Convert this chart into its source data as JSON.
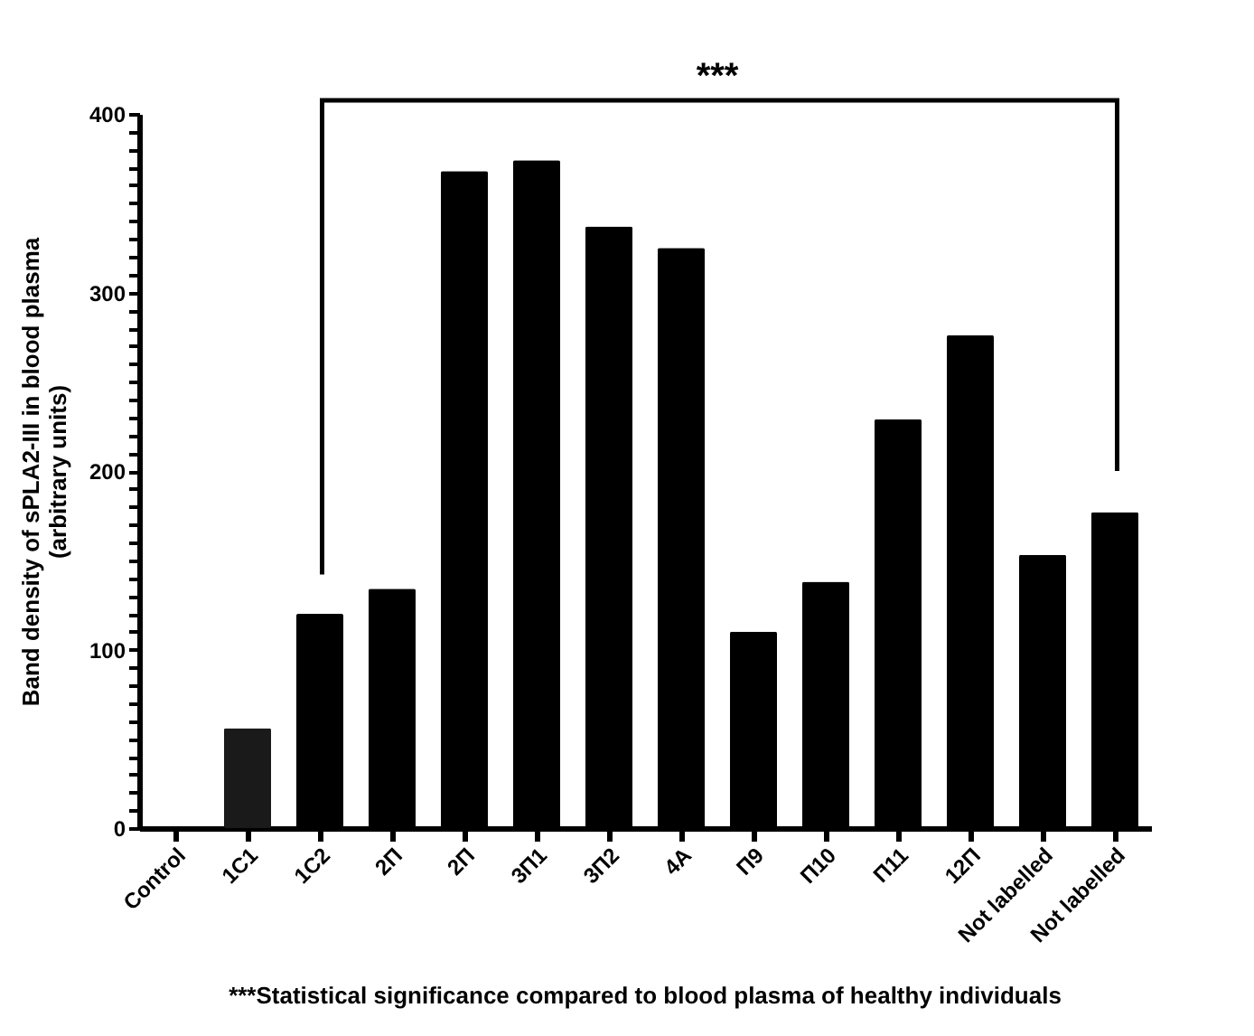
{
  "chart_data": {
    "type": "bar",
    "categories": [
      "Control",
      "1C1",
      "1C2",
      "2П",
      "2П",
      "3П1",
      "3П2",
      "4A",
      "П9",
      "П10",
      "П11",
      "12П",
      "Not labelled",
      "Not labelled"
    ],
    "values": [
      0,
      56,
      120,
      134,
      368,
      374,
      337,
      325,
      110,
      138,
      229,
      276,
      153,
      177
    ],
    "colors": [
      "#000000",
      "#1a1a1a",
      "#000000",
      "#000000",
      "#000000",
      "#000000",
      "#000000",
      "#000000",
      "#000000",
      "#000000",
      "#000000",
      "#000000",
      "#000000",
      "#000000"
    ],
    "ylabel": "Band density of sPLA2-III in blood plasma\n(arbitrary units)",
    "ylim": [
      0,
      400
    ],
    "yticks": [
      0,
      {
        "value": 10,
        "label": null
      },
      {
        "value": 20,
        "label": null
      },
      {
        "value": 30,
        "label": null
      },
      {
        "value": 40,
        "label": null
      },
      {
        "value": 50,
        "label": null
      },
      {
        "value": 60,
        "label": null
      },
      {
        "value": 70,
        "label": null
      },
      {
        "value": 80,
        "label": null
      },
      {
        "value": 90,
        "label": null
      },
      100,
      {
        "value": 110,
        "label": null
      },
      {
        "value": 120,
        "label": null
      },
      {
        "value": 130,
        "label": null
      },
      {
        "value": 140,
        "label": null
      },
      {
        "value": 150,
        "label": null
      },
      {
        "value": 160,
        "label": null
      },
      {
        "value": 170,
        "label": null
      },
      {
        "value": 180,
        "label": null
      },
      {
        "value": 190,
        "label": null
      },
      200,
      {
        "value": 210,
        "label": null
      },
      {
        "value": 220,
        "label": null
      },
      {
        "value": 230,
        "label": null
      },
      {
        "value": 240,
        "label": null
      },
      {
        "value": 250,
        "label": null
      },
      {
        "value": 260,
        "label": null
      },
      {
        "value": 270,
        "label": null
      },
      {
        "value": 280,
        "label": null
      },
      {
        "value": 290,
        "label": null
      },
      300,
      {
        "value": 310,
        "label": null
      },
      {
        "value": 320,
        "label": null
      },
      {
        "value": 330,
        "label": null
      },
      {
        "value": 340,
        "label": null
      },
      {
        "value": 350,
        "label": null
      },
      {
        "value": 360,
        "label": null
      },
      {
        "value": 370,
        "label": null
      },
      {
        "value": 380,
        "label": null
      },
      {
        "value": 390,
        "label": null
      },
      400
    ],
    "annotations": [
      "***",
      "***Statistical significance compared to blood plasma of healthy individuals"
    ],
    "grid": false
  }
}
